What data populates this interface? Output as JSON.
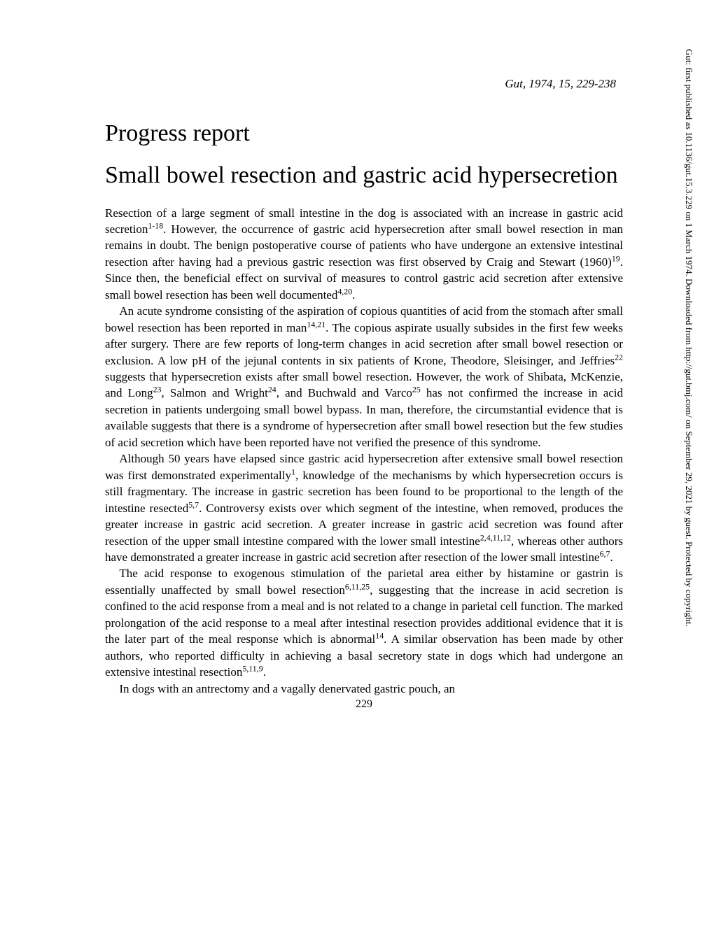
{
  "citation": "Gut, 1974, 15, 229-238",
  "section_heading": "Progress report",
  "title": "Small bowel resection and gastric acid hypersecretion",
  "paragraphs": [
    {
      "indent": false,
      "html": "Resection of a large segment of small intestine in the dog is associated with an increase in gastric acid secretion<sup>1-18</sup>. However, the occurrence of gastric acid hypersecretion after small bowel resection in man remains in doubt. The benign postoperative course of patients who have undergone an extensive intestinal resection after having had a previous gastric resection was first observed by Craig and Stewart (1960)<sup>19</sup>. Since then, the beneficial effect on survival of measures to control gastric acid secretion after extensive small bowel resection has been well documented<sup>4,20</sup>."
    },
    {
      "indent": true,
      "html": "An acute syndrome consisting of the aspiration of copious quantities of acid from the stomach after small bowel resection has been reported in man<sup>14,21</sup>. The copious aspirate usually subsides in the first few weeks after surgery. There are few reports of long-term changes in acid secretion after small bowel resection or exclusion. A low pH of the jejunal contents in six patients of Krone, Theodore, Sleisinger, and Jeffries<sup>22</sup> suggests that hypersecretion exists after small bowel resection. However, the work of Shibata, McKenzie, and Long<sup>23</sup>, Salmon and Wright<sup>24</sup>, and Buchwald and Varco<sup>25</sup> has not confirmed the increase in acid secretion in patients undergoing small bowel bypass. In man, therefore, the circumstantial evidence that is available suggests that there is a syndrome of hypersecretion after small bowel resection but the few studies of acid secretion which have been reported have not verified the presence of this syndrome."
    },
    {
      "indent": true,
      "html": "Although 50 years have elapsed since gastric acid hypersecretion after extensive small bowel resection was first demonstrated experimentally<sup>1</sup>, knowledge of the mechanisms by which hypersecretion occurs is still fragmentary. The increase in gastric secretion has been found to be proportional to the length of the intestine resected<sup>5,7</sup>. Controversy exists over which segment of the intestine, when removed, produces the greater increase in gastric acid secretion. A greater increase in gastric acid secretion was found after resection of the upper small intestine compared with the lower small intestine<sup>2,4,11,12</sup>, whereas other authors have demonstrated a greater increase in gastric acid secretion after resection of the lower small intestine<sup>6,7</sup>."
    },
    {
      "indent": true,
      "html": "The acid response to exogenous stimulation of the parietal area either by histamine or gastrin is essentially unaffected by small bowel resection<sup>6,11,25</sup>, suggesting that the increase in acid secretion is confined to the acid response from a meal and is not related to a change in parietal cell function. The marked prolongation of the acid response to a meal after intestinal resection provides additional evidence that it is the later part of the meal response which is abnormal<sup>14</sup>. A similar observation has been made by other authors, who reported difficulty in achieving a basal secretory state in dogs which had undergone an extensive intestinal resection<sup>5,11,9</sup>."
    },
    {
      "indent": true,
      "html": "In dogs with an antrectomy and a vagally denervated gastric pouch, an"
    }
  ],
  "page_number": "229",
  "side_text": "Gut: first published as 10.1136/gut.15.3.229 on 1 March 1974. Downloaded from http://gut.bmj.com/ on September 29, 2021 by guest. Protected by copyright.",
  "colors": {
    "background": "#ffffff",
    "text": "#000000"
  },
  "typography": {
    "body_fontsize": 17,
    "title_fontsize": 34,
    "heading_fontsize": 34,
    "side_fontsize": 13,
    "citation_fontsize": 17,
    "font_family": "Times New Roman"
  }
}
